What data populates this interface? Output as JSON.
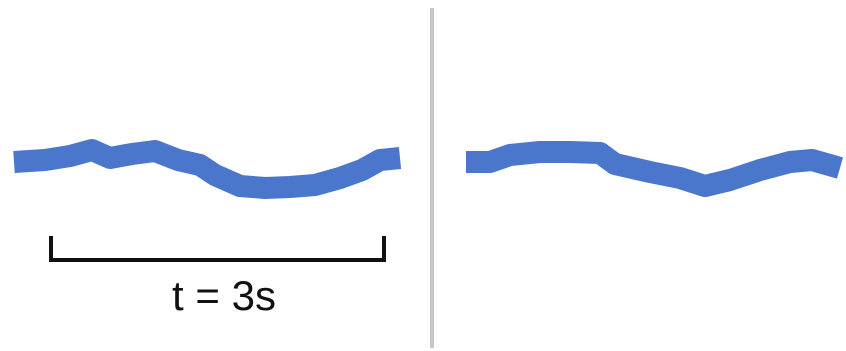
{
  "colors": {
    "wave": "#4a77cc",
    "divider": "#c8c8c8",
    "bracket": "#111111",
    "text": "#111111",
    "background": "#ffffff"
  },
  "left_panel": {
    "duration_label": "t = 3s"
  },
  "right_panel": {}
}
